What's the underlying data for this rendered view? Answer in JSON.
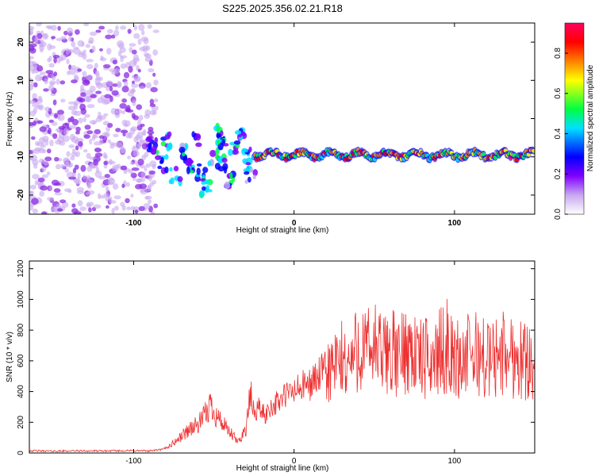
{
  "title": "S225.2025.356.02.21.R18",
  "chart_data": [
    {
      "type": "heatmap",
      "xlabel": "Height of straight line (km)",
      "ylabel": "Frequency (Hz)",
      "xlim": [
        -165,
        150
      ],
      "ylim": [
        -25,
        25
      ],
      "xticks": [
        -100,
        0,
        100
      ],
      "xtick_labels": [
        "-100",
        "0",
        "100"
      ],
      "yticks": [
        -20,
        -10,
        0,
        10,
        20
      ],
      "ytick_labels": [
        "-20",
        "-10",
        "0",
        "10",
        "20"
      ],
      "colorbar": {
        "label": "Normalized spectral amplitude",
        "range": [
          0,
          0.95
        ],
        "ticks": [
          0,
          0.2,
          0.4,
          0.6,
          0.8
        ],
        "tick_labels": [
          "0.0",
          "0.2",
          "0.4",
          "0.6",
          "0.8"
        ],
        "colors": [
          "#ffffff",
          "#c8a8f0",
          "#8000ff",
          "#0000ff",
          "#00e0ff",
          "#00ff40",
          "#ffff00",
          "#ff8000",
          "#ff0000",
          "#ff0060"
        ]
      },
      "features": [
        {
          "name": "noise",
          "x_range": [
            -165,
            -88
          ],
          "y_range": [
            -25,
            25
          ],
          "amplitude": 0.1
        },
        {
          "name": "scattered",
          "x_range": [
            -92,
            -25
          ],
          "y_range": [
            -19,
            -3
          ],
          "amplitude": 0.35
        },
        {
          "name": "tone",
          "x_range": [
            -25,
            150
          ],
          "frequency": -9.5,
          "amplitude": 0.7
        }
      ]
    },
    {
      "type": "line",
      "xlabel": "Height of straight line (km)",
      "ylabel": "SNR (10 * v/v)",
      "xlim": [
        -165,
        150
      ],
      "ylim": [
        0,
        1250
      ],
      "xticks": [
        -100,
        0,
        100
      ],
      "xtick_labels": [
        "-100",
        "0",
        "100"
      ],
      "yticks": [
        0,
        200,
        400,
        600,
        800,
        1000,
        1200
      ],
      "ytick_labels": [
        "0",
        "200",
        "400",
        "600",
        "800",
        "1000",
        "1200"
      ],
      "color": "#ee3030",
      "series": [
        {
          "name": "SNR",
          "x": [
            -165,
            -150,
            -135,
            -120,
            -105,
            -90,
            -82,
            -78,
            -72,
            -68,
            -65,
            -60,
            -55,
            -52,
            -48,
            -45,
            -42,
            -38,
            -35,
            -30,
            -27,
            -25,
            -22,
            -18,
            -15,
            -10,
            -5,
            0,
            5,
            10,
            15,
            20,
            25,
            30,
            35,
            40,
            45,
            50,
            55,
            60,
            65,
            70,
            75,
            80,
            85,
            90,
            95,
            100,
            105,
            110,
            115,
            120,
            125,
            130,
            135,
            140,
            145,
            150
          ],
          "values": [
            15,
            12,
            14,
            13,
            15,
            14,
            22,
            45,
            90,
            130,
            160,
            180,
            250,
            320,
            240,
            200,
            150,
            110,
            70,
            160,
            380,
            250,
            300,
            240,
            300,
            330,
            380,
            400,
            430,
            450,
            500,
            540,
            550,
            600,
            580,
            700,
            650,
            700,
            620,
            680,
            600,
            700,
            650,
            600,
            620,
            640,
            700,
            600,
            620,
            640,
            650,
            600,
            620,
            650,
            640,
            620,
            600,
            640
          ]
        }
      ]
    }
  ]
}
